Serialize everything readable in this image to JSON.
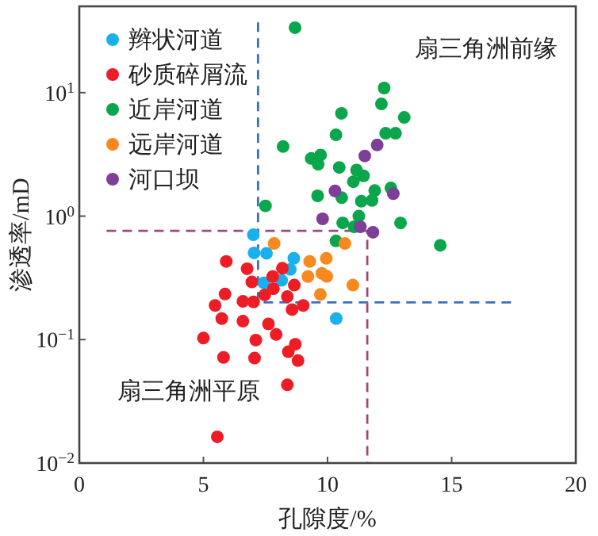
{
  "chart_data": {
    "type": "scatter",
    "xlabel": "孔隙度/%",
    "ylabel": "渗透率/mD",
    "log": "y",
    "xlim": [
      0,
      20
    ],
    "xticks": [
      0,
      5,
      10,
      15,
      20
    ],
    "ylim": [
      0.01,
      50
    ],
    "yticks": [
      {
        "value": 0.01,
        "label": "10$^{−2}$"
      },
      {
        "value": 0.1,
        "label": "10$^{−1}$"
      },
      {
        "value": 1,
        "label": "10$^{0}$"
      },
      {
        "value": 10,
        "label": "10$^{1}$"
      }
    ],
    "grid": false,
    "legend": "top left",
    "marker": "circle",
    "annotations": [
      "扇三角洲前缘",
      "扇三角洲平原"
    ],
    "series": [
      {
        "name": "辫状河道",
        "color": "#1ab0ee",
        "x": [
          7.01,
          7.04,
          7.54,
          8.64,
          8.5,
          7.44,
          8.15,
          10.35
        ],
        "values": [
          0.706,
          0.504,
          0.5,
          0.455,
          0.37,
          0.288,
          0.302,
          0.148
        ]
      },
      {
        "name": "砂质碎屑流",
        "color": "#ee1c25",
        "x": [
          5.92,
          6.76,
          5.87,
          6.95,
          5.47,
          5.74,
          6.59,
          7.02,
          6.59,
          7.47,
          7.79,
          7.82,
          8.18,
          8.38,
          8.66,
          8.57,
          9.02,
          7.62,
          7.93,
          5.0,
          7.11,
          5.81,
          7.06,
          8.42,
          8.7,
          8.81,
          8.38,
          5.56
        ],
        "values": [
          0.43,
          0.375,
          0.234,
          0.293,
          0.189,
          0.148,
          0.204,
          0.202,
          0.141,
          0.23,
          0.324,
          0.258,
          0.378,
          0.223,
          0.276,
          0.175,
          0.189,
          0.134,
          0.11,
          0.103,
          0.099,
          0.0717,
          0.0709,
          0.0798,
          0.0917,
          0.0675,
          0.043,
          0.0163
        ]
      },
      {
        "name": "近岸河道",
        "color": "#0aa64b",
        "x": [
          8.69,
          10.56,
          10.34,
          8.21,
          9.34,
          9.72,
          9.62,
          10.47,
          9.6,
          10.57,
          7.5,
          10.61,
          10.34,
          12.28,
          12.17,
          13.09,
          12.34,
          12.74,
          11.17,
          11.45,
          11.04,
          11.9,
          12.55,
          11.36,
          11.79,
          11.26,
          11.07,
          12.94,
          14.54
        ],
        "values": [
          33.6,
          6.8,
          4.55,
          3.66,
          2.93,
          3.13,
          2.63,
          2.48,
          1.46,
          1.41,
          1.21,
          0.88,
          0.63,
          10.9,
          8.1,
          6.3,
          4.69,
          4.69,
          2.36,
          2.12,
          1.9,
          1.61,
          1.69,
          1.32,
          1.34,
          1.0,
          0.82,
          0.88,
          0.58
        ]
      },
      {
        "name": "远岸河道",
        "color": "#f7891f",
        "x": [
          7.85,
          9.28,
          9.95,
          9.21,
          9.77,
          9.97,
          9.71,
          11.02,
          10.7
        ],
        "values": [
          0.6,
          0.43,
          0.455,
          0.324,
          0.344,
          0.325,
          0.232,
          0.276,
          0.6
        ]
      },
      {
        "name": "河口坝",
        "color": "#7e3f98",
        "x": [
          10.3,
          9.8,
          12.0,
          11.5,
          12.65,
          11.32,
          11.83
        ],
        "values": [
          1.6,
          0.95,
          3.77,
          3.07,
          1.52,
          0.82,
          0.74
        ]
      },
      {
        "type": "line",
        "color": "#3a6fc4",
        "line_style": "dashed",
        "marker": "none",
        "x": [
          7.2,
          7.2,
          17.5
        ],
        "values": [
          37,
          0.2,
          0.2
        ]
      },
      {
        "type": "line",
        "color": "#9b4a7f",
        "line_style": "dashed",
        "marker": "none",
        "x": [
          1.1,
          11.6,
          11.6
        ],
        "values": [
          0.76,
          0.76,
          0.01
        ]
      }
    ]
  }
}
